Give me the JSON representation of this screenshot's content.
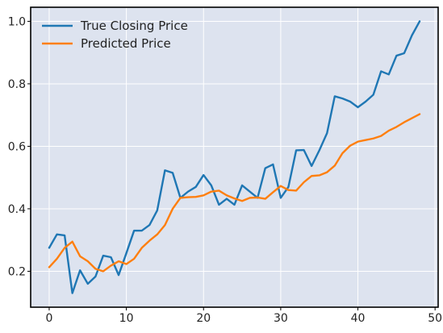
{
  "chart_data": {
    "type": "line",
    "title": "",
    "xlabel": "",
    "ylabel": "",
    "xlim": [
      -2.4,
      50.4
    ],
    "ylim": [
      0.085,
      1.045
    ],
    "xticks": [
      0,
      10,
      20,
      30,
      40,
      50
    ],
    "yticks": [
      0.2,
      0.4,
      0.6,
      0.8,
      1.0
    ],
    "xtick_labels": [
      "0",
      "10",
      "20",
      "30",
      "40",
      "50"
    ],
    "ytick_labels": [
      "0.2",
      "0.4",
      "0.6",
      "0.8",
      "1.0"
    ],
    "grid": true,
    "legend_position": "top-left",
    "background": "#dde3ef",
    "x": [
      0,
      1,
      2,
      3,
      4,
      5,
      6,
      7,
      8,
      9,
      10,
      11,
      12,
      13,
      14,
      15,
      16,
      17,
      18,
      19,
      20,
      21,
      22,
      23,
      24,
      25,
      26,
      27,
      28,
      29,
      30,
      31,
      32,
      33,
      34,
      35,
      36,
      37,
      38,
      39,
      40,
      41,
      42,
      43,
      44,
      45,
      46,
      47,
      48
    ],
    "series": [
      {
        "name": "True Closing Price",
        "color": "#1f77b4",
        "values": [
          0.275,
          0.318,
          0.315,
          0.13,
          0.203,
          0.16,
          0.183,
          0.25,
          0.245,
          0.188,
          0.258,
          0.33,
          0.33,
          0.348,
          0.395,
          0.523,
          0.515,
          0.435,
          0.455,
          0.47,
          0.508,
          0.475,
          0.413,
          0.432,
          0.413,
          0.475,
          0.455,
          0.435,
          0.53,
          0.542,
          0.435,
          0.47,
          0.587,
          0.588,
          0.537,
          0.587,
          0.642,
          0.76,
          0.753,
          0.743,
          0.725,
          0.743,
          0.765,
          0.84,
          0.83,
          0.89,
          0.898,
          0.955,
          1.0
        ]
      },
      {
        "name": "Predicted Price",
        "color": "#ff7f0e",
        "values": [
          0.213,
          0.24,
          0.275,
          0.295,
          0.248,
          0.232,
          0.208,
          0.2,
          0.218,
          0.232,
          0.223,
          0.24,
          0.275,
          0.298,
          0.318,
          0.348,
          0.4,
          0.435,
          0.437,
          0.438,
          0.443,
          0.455,
          0.458,
          0.443,
          0.433,
          0.425,
          0.435,
          0.436,
          0.432,
          0.453,
          0.473,
          0.46,
          0.458,
          0.485,
          0.505,
          0.507,
          0.517,
          0.538,
          0.578,
          0.602,
          0.615,
          0.62,
          0.625,
          0.633,
          0.65,
          0.662,
          0.677,
          0.69,
          0.703
        ]
      }
    ]
  }
}
